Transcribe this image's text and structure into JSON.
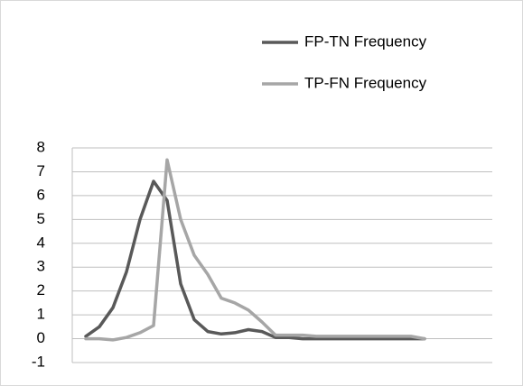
{
  "chart_data": {
    "type": "line",
    "categories": [
      null,
      null,
      null,
      null,
      null,
      null,
      null,
      null,
      null,
      null,
      null,
      null,
      null,
      null,
      null,
      null,
      null,
      null,
      null,
      null,
      null,
      null,
      null,
      null,
      null,
      null
    ],
    "series": [
      {
        "name": "FP-TN Frequency",
        "color": "#595959",
        "values": [
          0.1,
          0.5,
          1.3,
          2.8,
          5.0,
          6.6,
          5.8,
          2.3,
          0.8,
          0.3,
          0.2,
          0.25,
          0.38,
          0.3,
          0.05,
          0.05,
          0,
          0,
          0,
          0,
          0,
          0,
          0,
          0,
          0,
          0
        ]
      },
      {
        "name": "TP-FN Frequency",
        "color": "#a6a6a6",
        "values": [
          0,
          0,
          -0.05,
          0.05,
          0.25,
          0.55,
          7.5,
          5.0,
          3.5,
          2.7,
          1.7,
          1.5,
          1.2,
          0.7,
          0.15,
          0.15,
          0.15,
          0.1,
          0.1,
          0.1,
          0.1,
          0.1,
          0.1,
          0.1,
          0.1,
          0
        ]
      }
    ],
    "ylim": [
      -1,
      8
    ],
    "yticks": [
      -1,
      0,
      1,
      2,
      3,
      4,
      5,
      6,
      7,
      8
    ],
    "grid": true,
    "legend": "top-right"
  }
}
